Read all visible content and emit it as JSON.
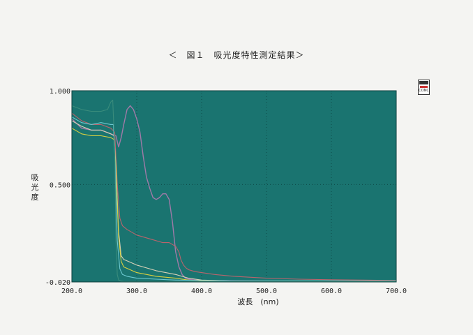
{
  "chart_data": {
    "type": "line",
    "title": "＜　図１　吸光度特性測定結果＞",
    "xlabel": "波長　(nm)",
    "ylabel": "吸光度",
    "xlim": [
      200.0,
      700.0
    ],
    "ylim": [
      -0.02,
      1.0
    ],
    "x_ticks": [
      "200.0",
      "300.0",
      "400.0",
      "500.0",
      "600.0",
      "700.0"
    ],
    "y_ticks": [
      "1.000",
      "0.500",
      "-0.020"
    ],
    "x_tick_values": [
      200,
      300,
      400,
      500,
      600,
      700
    ],
    "y_tick_values": [
      1.0,
      0.5,
      -0.02
    ],
    "grid": true,
    "background": "#1a7470",
    "series": [
      {
        "color": "#a07aa8",
        "x": [
          200,
          215,
          230,
          245,
          260,
          268,
          272,
          276,
          280,
          285,
          290,
          295,
          300,
          305,
          310,
          315,
          320,
          325,
          330,
          335,
          340,
          345,
          350,
          355,
          360,
          365,
          370,
          375,
          380,
          390,
          400,
          420,
          450,
          500,
          550,
          600,
          650,
          700
        ],
        "y": [
          0.85,
          0.8,
          0.79,
          0.79,
          0.77,
          0.76,
          0.7,
          0.75,
          0.82,
          0.9,
          0.92,
          0.9,
          0.85,
          0.78,
          0.65,
          0.54,
          0.48,
          0.43,
          0.42,
          0.43,
          0.45,
          0.45,
          0.42,
          0.3,
          0.14,
          0.06,
          0.02,
          0.0,
          -0.005,
          -0.01,
          -0.012,
          -0.013,
          -0.014,
          -0.015,
          -0.015,
          -0.015,
          -0.015,
          -0.015
        ]
      },
      {
        "color": "#b8646c",
        "x": [
          200,
          215,
          230,
          245,
          260,
          266,
          270,
          274,
          278,
          285,
          300,
          320,
          340,
          350,
          355,
          360,
          365,
          368,
          372,
          376,
          380,
          390,
          400,
          420,
          450,
          500,
          550,
          600,
          650,
          700
        ],
        "y": [
          0.88,
          0.84,
          0.82,
          0.82,
          0.8,
          0.78,
          0.5,
          0.32,
          0.28,
          0.26,
          0.23,
          0.21,
          0.19,
          0.19,
          0.18,
          0.17,
          0.14,
          0.1,
          0.07,
          0.055,
          0.045,
          0.035,
          0.03,
          0.02,
          0.01,
          0.0,
          -0.005,
          -0.008,
          -0.01,
          -0.012
        ]
      },
      {
        "color": "#d8d2b8",
        "x": [
          200,
          215,
          230,
          245,
          260,
          265,
          268,
          272,
          276,
          280,
          300,
          330,
          360,
          380,
          400,
          450,
          500,
          600,
          700
        ],
        "y": [
          0.84,
          0.81,
          0.79,
          0.79,
          0.77,
          0.76,
          0.6,
          0.25,
          0.12,
          0.1,
          0.07,
          0.04,
          0.02,
          0.0,
          -0.01,
          -0.015,
          -0.015,
          -0.015,
          -0.015
        ]
      },
      {
        "color": "#d8d040",
        "x": [
          200,
          215,
          230,
          245,
          260,
          265,
          268,
          272,
          276,
          280,
          300,
          330,
          360,
          380,
          400,
          450,
          500,
          600,
          700
        ],
        "y": [
          0.8,
          0.77,
          0.76,
          0.76,
          0.75,
          0.74,
          0.58,
          0.22,
          0.09,
          0.06,
          0.03,
          0.01,
          0.0,
          -0.01,
          -0.015,
          -0.015,
          -0.015,
          -0.015,
          -0.015
        ]
      },
      {
        "color": "#6cc8d0",
        "x": [
          200,
          215,
          230,
          245,
          260,
          264,
          267,
          270,
          274,
          278,
          285,
          300,
          330,
          360,
          400,
          450,
          500,
          600,
          700
        ],
        "y": [
          0.86,
          0.83,
          0.82,
          0.83,
          0.82,
          0.82,
          0.6,
          0.2,
          0.05,
          0.02,
          0.01,
          0.0,
          -0.005,
          -0.01,
          -0.012,
          -0.015,
          -0.015,
          -0.015,
          -0.015
        ]
      },
      {
        "color": "#3a8c7c",
        "x": [
          200,
          215,
          230,
          245,
          255,
          260,
          263,
          266,
          268,
          270,
          272,
          275,
          280,
          300,
          700
        ],
        "y": [
          0.92,
          0.9,
          0.89,
          0.89,
          0.9,
          0.94,
          0.95,
          0.7,
          0.2,
          0.02,
          -0.01,
          -0.015,
          -0.018,
          -0.018,
          -0.018
        ]
      }
    ]
  },
  "icon": {
    "name": "conc-icon",
    "label": "CONC"
  }
}
